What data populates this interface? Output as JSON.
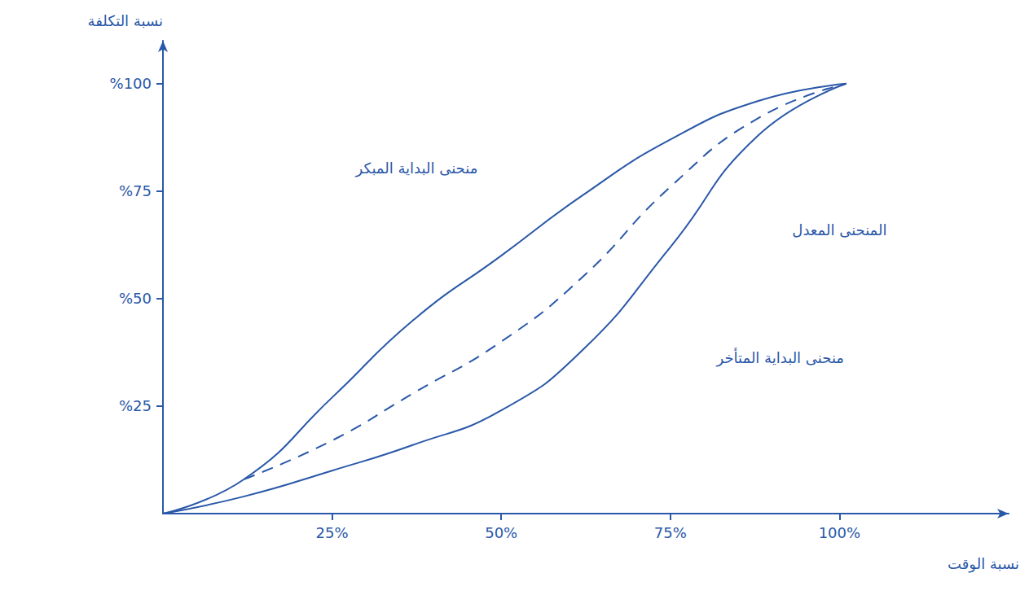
{
  "chart_data": {
    "type": "line",
    "x_label": "نسبة الوقت",
    "y_label": "نسبة التكلفة",
    "x": [
      0,
      12,
      25,
      37,
      50,
      62,
      75,
      88,
      101
    ],
    "xlim": [
      0,
      125
    ],
    "xticks": [
      {
        "value": 25,
        "label": "25%"
      },
      {
        "value": 50,
        "label": "50%"
      },
      {
        "value": 75,
        "label": "75%"
      },
      {
        "value": 100,
        "label": "100%"
      }
    ],
    "ylim": [
      0,
      110
    ],
    "yticks": [
      {
        "value": 25,
        "label": "%25"
      },
      {
        "value": 50,
        "label": "%50"
      },
      {
        "value": 75,
        "label": "%75"
      },
      {
        "value": 100,
        "label": "%100"
      }
    ],
    "grid": false,
    "series": [
      {
        "name": "منحنى البداية المبكر",
        "color": "#2a58a8",
        "line_style": "solid",
        "values": [
          0,
          8,
          27,
          45,
          60,
          74,
          87,
          96,
          100
        ]
      },
      {
        "name": "المنحنى المعدل",
        "color": "#2a58a8",
        "line_style": "dashed",
        "values": [
          null,
          8,
          17,
          28,
          40,
          55,
          76,
          92,
          100
        ]
      },
      {
        "name": "منحنى البداية المتأخر",
        "color": "#2a58a8",
        "line_style": "solid",
        "values": [
          0,
          4,
          10,
          16,
          24,
          38,
          62,
          88,
          100
        ]
      }
    ]
  }
}
